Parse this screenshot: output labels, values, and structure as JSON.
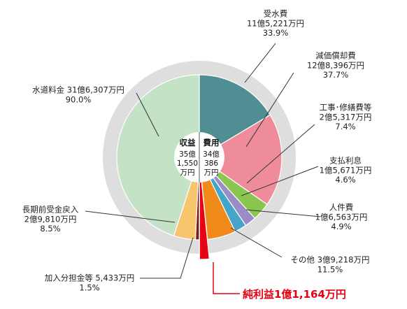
{
  "chart_data": {
    "type": "pie",
    "title": "",
    "center": {
      "revenue": {
        "title": "収益",
        "lines": [
          "35億",
          "1,550",
          "万円"
        ]
      },
      "expense": {
        "title": "費用",
        "lines": [
          "34億",
          "386",
          "万円"
        ]
      }
    },
    "revenue": [
      {
        "name": "水道料金",
        "amount": "31億6,307万円",
        "percent": 90.0,
        "color": "#c4e2c5",
        "label_lines": [
          "水道料金 31億6,307万円",
          "90.0%"
        ]
      },
      {
        "name": "長期前受金戻入",
        "amount": "2億9,810万円",
        "percent": 8.5,
        "color": "#f6c56d",
        "label_lines": [
          "長期前受金戻入",
          "2億9,810万円",
          "8.5%"
        ]
      },
      {
        "name": "加入分担金等",
        "amount": "5,433万円",
        "percent": 1.5,
        "color": "#7a1e1e",
        "label_lines": [
          "加入分担金等 5,433万円",
          "1.5%"
        ]
      }
    ],
    "expense": [
      {
        "name": "受水費",
        "amount": "11億5,221万円",
        "percent": 33.9,
        "color": "#4f8f93",
        "label_lines": [
          "受水費",
          "11億5,221万円",
          "33.9%"
        ]
      },
      {
        "name": "減価償却費",
        "amount": "12億8,396万円",
        "percent": 37.7,
        "color": "#ef8c9b",
        "label_lines": [
          "減価償却費",
          "12億8,396万円",
          "37.7%"
        ]
      },
      {
        "name": "工事・修繕費等",
        "amount": "2億5,317万円",
        "percent": 7.4,
        "color": "#8ac64f",
        "label_lines": [
          "工事･修繕費等",
          "2億5,317万円",
          "7.4%"
        ]
      },
      {
        "name": "支払利息",
        "amount": "1億5,671万円",
        "percent": 4.6,
        "color": "#9a8cc6",
        "label_lines": [
          "支払利息",
          "1億5,671万円",
          "4.6%"
        ]
      },
      {
        "name": "人件費",
        "amount": "1億6,563万円",
        "percent": 4.9,
        "color": "#44a5c8",
        "label_lines": [
          "人件費",
          "1億6,563万円",
          "4.9%"
        ]
      },
      {
        "name": "その他",
        "amount": "3億9,218万円",
        "percent": 11.5,
        "color": "#ef8a1b",
        "label_lines": [
          "その他 3億9,218万円",
          "11.5%"
        ]
      }
    ],
    "net_profit": {
      "label": "純利益1億1,164万円",
      "color": "#e60012"
    },
    "ring_color": "#dedede",
    "leader_color": "#333333"
  }
}
